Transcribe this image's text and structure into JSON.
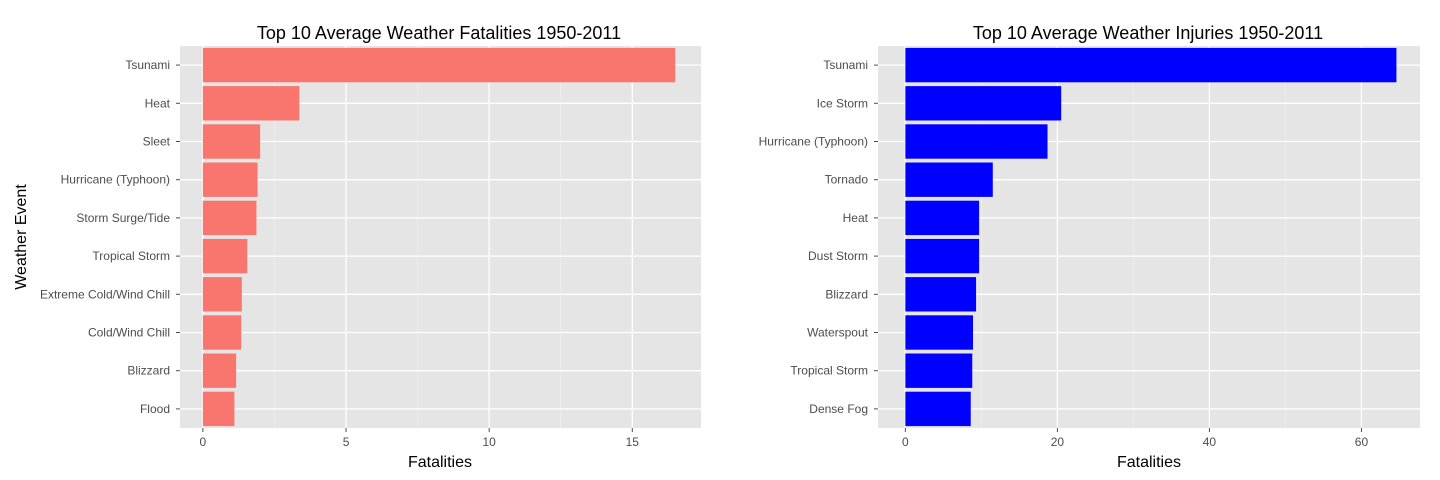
{
  "chart_data": [
    {
      "type": "bar",
      "orientation": "horizontal",
      "title": "Top 10 Average Weather Fatalities 1950-2011",
      "xlabel": "Fatalities",
      "ylabel": "Weather Event",
      "categories": [
        "Tsunami",
        "Heat",
        "Sleet",
        "Hurricane (Typhoon)",
        "Storm Surge/Tide",
        "Tropical Storm",
        "Extreme Cold/Wind Chill",
        "Cold/Wind Chill",
        "Blizzard",
        "Flood"
      ],
      "values": [
        16.5,
        3.37,
        2.0,
        1.91,
        1.87,
        1.55,
        1.36,
        1.34,
        1.16,
        1.1
      ],
      "xlim": [
        -0.8,
        17.4
      ],
      "xticks": [
        0,
        5,
        10,
        15
      ],
      "xtick_labels": [
        "0",
        "5",
        "10",
        "15"
      ],
      "grid": true,
      "bar_color": "#f8766d"
    },
    {
      "type": "bar",
      "orientation": "horizontal",
      "title": "Top 10 Average Weather Injuries 1950-2011",
      "xlabel": "Fatalities",
      "ylabel": "",
      "categories": [
        "Tsunami",
        "Ice Storm",
        "Hurricane (Typhoon)",
        "Tornado",
        "Heat",
        "Dust Storm",
        "Blizzard",
        "Waterspout",
        "Tropical Storm",
        "Dense Fog"
      ],
      "values": [
        64.6,
        20.5,
        18.7,
        11.5,
        9.7,
        9.7,
        9.3,
        8.9,
        8.8,
        8.6
      ],
      "xlim": [
        -3.6,
        67.7
      ],
      "xticks": [
        0,
        20,
        40,
        60
      ],
      "xtick_labels": [
        "0",
        "20",
        "40",
        "60"
      ],
      "grid": true,
      "bar_color": "#0000ff"
    }
  ]
}
